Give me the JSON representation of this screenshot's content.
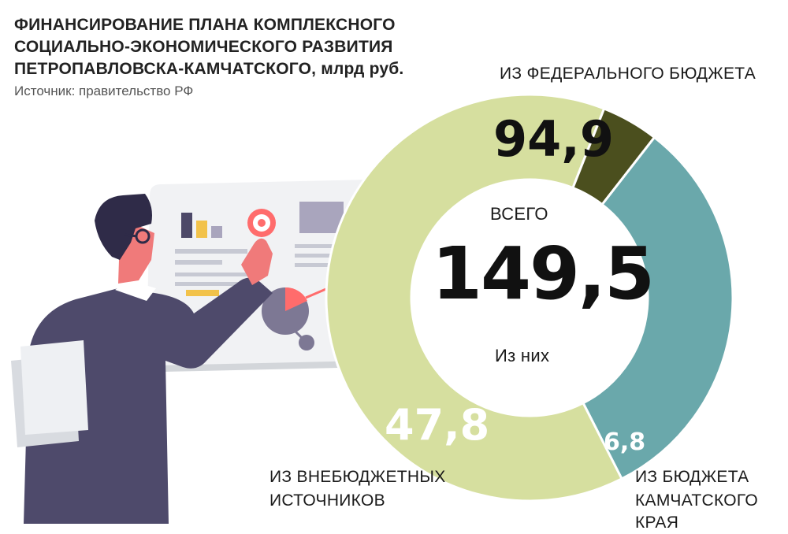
{
  "header": {
    "title_main": "ФИНАНСИРОВАНИЕ ПЛАНА КОМПЛЕКСНОГО СОЦИАЛЬНО-ЭКОНОМИЧЕСКОГО РАЗВИТИЯ ПЕТРОПАВЛОВСКА-КАМЧАТСКОГО,",
    "title_unit": "млрд руб.",
    "source": "Источник: правительство РФ"
  },
  "center": {
    "top_label": "ВСЕГО",
    "total": "149,5",
    "bottom_label": "Из них"
  },
  "colors": {
    "federal": "#d6df9f",
    "extra": "#6aa8ab",
    "regional": "#4b4f1e",
    "gap": "#ffffff"
  },
  "illustration": {
    "icons": [
      "businessman",
      "presentation-board",
      "bar-chart-icon",
      "pie-chart-icon",
      "target-icon",
      "document-icon"
    ]
  },
  "chart_data": {
    "type": "pie",
    "variant": "donut",
    "total": 149.5,
    "slices": [
      {
        "name": "ИЗ ФЕДЕРАЛЬНОГО БЮДЖЕТА",
        "value": 94.9,
        "label": "94,9"
      },
      {
        "name": "ИЗ БЮДЖЕТА КАМЧАТСКОГО КРАЯ",
        "value": 6.8,
        "label": "6,8"
      },
      {
        "name": "ИЗ ВНЕБЮДЖЕТНЫХ ИСТОЧНИКОВ",
        "value": 47.8,
        "label": "47,8"
      }
    ],
    "name_lines": {
      "federal": [
        "ИЗ ФЕДЕРАЛЬНОГО БЮДЖЕТА"
      ],
      "regional": [
        "ИЗ БЮДЖЕТА",
        "КАМЧАТСКОГО КРАЯ"
      ],
      "extra": [
        "ИЗ ВНЕБЮДЖЕТНЫХ",
        "ИСТОЧНИКОВ"
      ]
    }
  }
}
